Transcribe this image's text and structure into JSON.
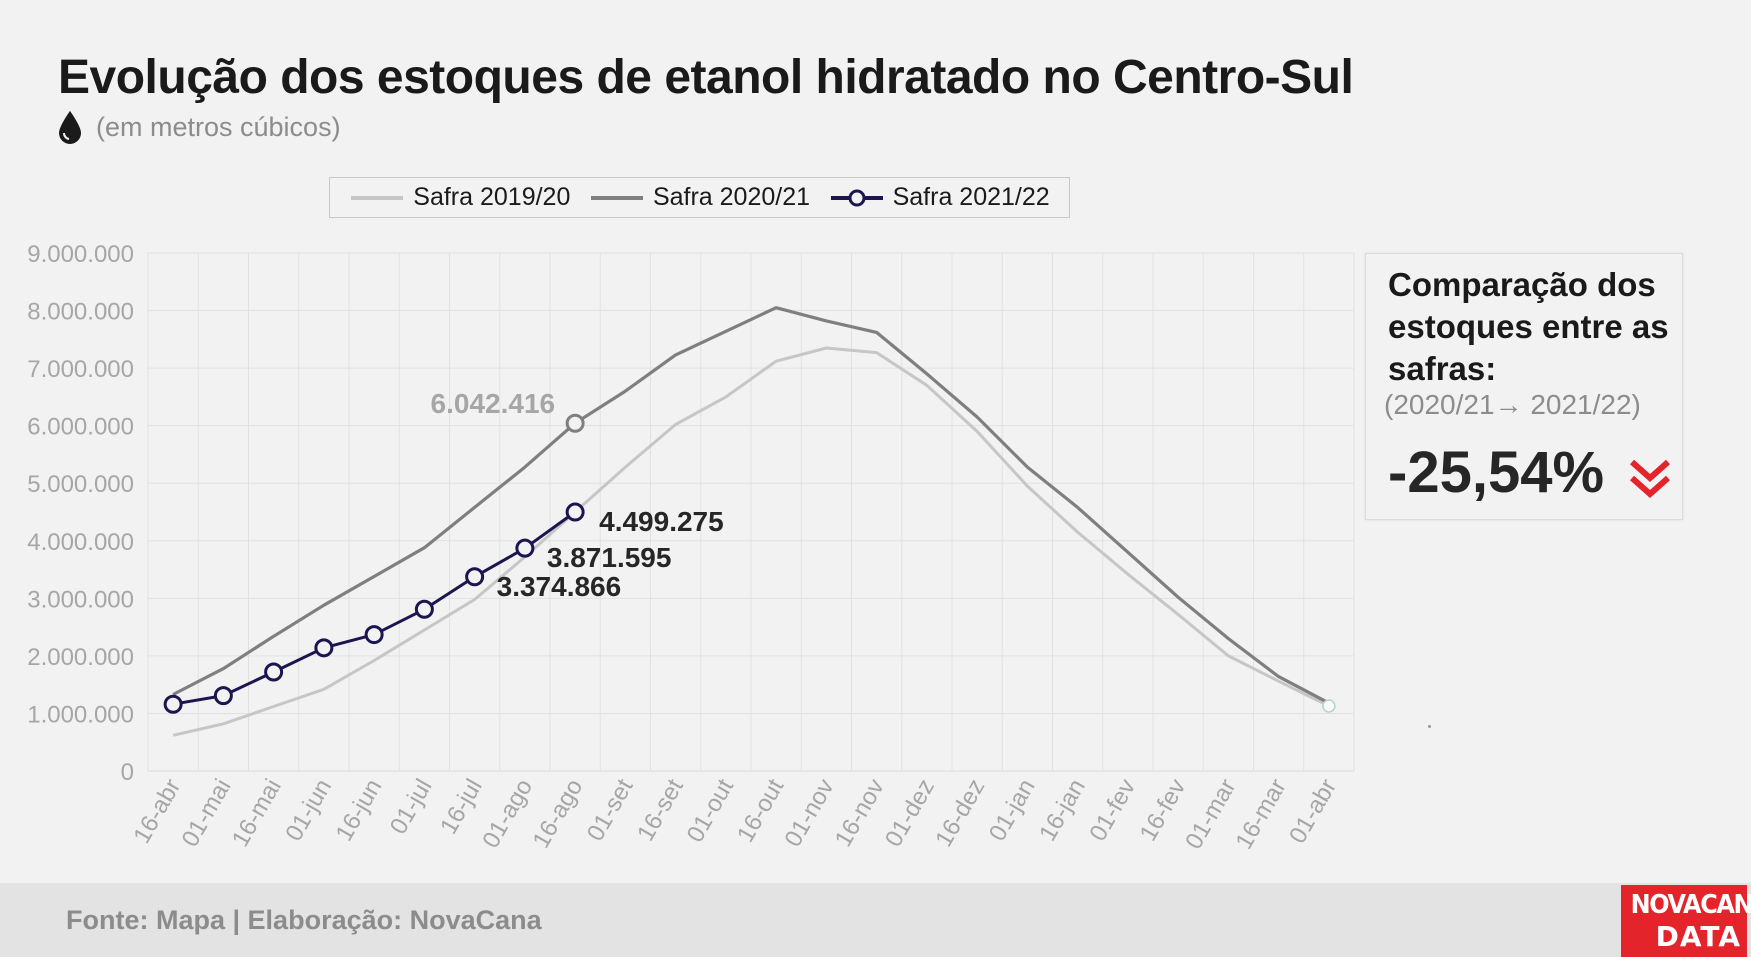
{
  "title": "Evolução dos estoques de etanol hidratado no Centro-Sul",
  "subtitle": "(em metros cúbicos)",
  "comparison": {
    "heading": "Comparação dos estoques entre as safras:",
    "period": "(2020/21→ 2021/22)",
    "value": "-25,54%"
  },
  "footer": {
    "source": "Fonte: Mapa | Elaboração: NovaCana"
  },
  "logo": {
    "line1": "NOVACANA",
    "line2": "DATA"
  },
  "colors": {
    "series_2019": "#c6c6c6",
    "series_2020": "#7f7f7f",
    "series_2021": "#1b1650",
    "accent_red": "#e3242b"
  },
  "icons": {
    "subtitle": "drop-icon",
    "comparison": "double-chevron-down-icon"
  },
  "chart_data": {
    "type": "line",
    "title": "Evolução dos estoques de etanol hidratado no Centro-Sul",
    "subtitle": "(em metros cúbicos)",
    "categories": [
      "16-abr",
      "01-mai",
      "16-mai",
      "01-jun",
      "16-jun",
      "01-jul",
      "16-jul",
      "01-ago",
      "16-ago",
      "01-set",
      "16-set",
      "01-out",
      "16-out",
      "01-nov",
      "16-nov",
      "01-dez",
      "16-dez",
      "01-jan",
      "16-jan",
      "01-fev",
      "16-fev",
      "01-mar",
      "16-mar",
      "01-abr"
    ],
    "ylim": [
      0,
      9000000
    ],
    "yticks": [
      0,
      1000000,
      2000000,
      3000000,
      4000000,
      5000000,
      6000000,
      7000000,
      8000000,
      9000000
    ],
    "ytick_labels": [
      "0",
      "1.000.000",
      "2.000.000",
      "3.000.000",
      "4.000.000",
      "5.000.000",
      "6.000.000",
      "7.000.000",
      "8.000.000",
      "9.000.000"
    ],
    "grid": true,
    "legend_position": "top",
    "series": [
      {
        "name": "Safra 2019/20",
        "values": [
          620000,
          820000,
          1120000,
          1420000,
          1920000,
          2450000,
          2980000,
          3720000,
          4500000,
          5280000,
          6020000,
          6500000,
          7120000,
          7350000,
          7270000,
          6700000,
          5900000,
          4950000,
          4150000,
          3420000,
          2720000,
          2000000,
          1560000,
          1130000
        ]
      },
      {
        "name": "Safra 2020/21",
        "values": [
          1330000,
          1780000,
          2340000,
          2880000,
          3380000,
          3880000,
          4580000,
          5280000,
          6042416,
          6600000,
          7230000,
          7640000,
          8050000,
          7820000,
          7620000,
          6900000,
          6150000,
          5280000,
          4580000,
          3800000,
          3020000,
          2300000,
          1640000,
          1180000
        ]
      },
      {
        "name": "Safra 2021/22",
        "values": [
          1160000,
          1310000,
          1720000,
          2140000,
          2370000,
          2810000,
          3374866,
          3871595,
          4499275,
          null,
          null,
          null,
          null,
          null,
          null,
          null,
          null,
          null,
          null,
          null,
          null,
          null,
          null,
          null
        ],
        "markers": true
      }
    ],
    "annotations": [
      {
        "text": "6.042.416",
        "series": "Safra 2020/21",
        "category": "16-ago",
        "value": 6042416
      },
      {
        "text": "4.499.275",
        "series": "Safra 2021/22",
        "category": "16-ago",
        "value": 4499275
      },
      {
        "text": "3.871.595",
        "series": "Safra 2021/22",
        "category": "01-ago",
        "value": 3871595
      },
      {
        "text": "3.374.866",
        "series": "Safra 2021/22",
        "category": "16-jul",
        "value": 3374866
      }
    ]
  }
}
